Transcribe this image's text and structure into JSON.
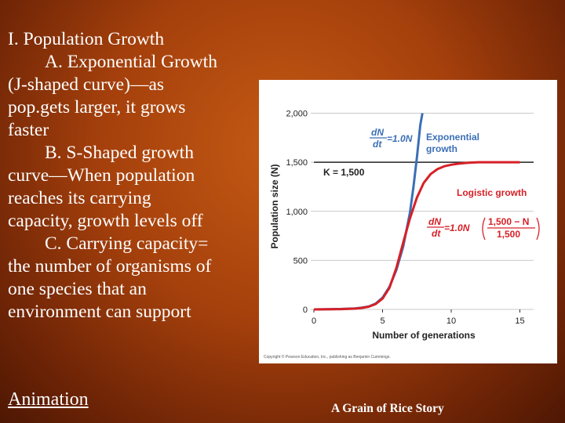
{
  "slide": {
    "lines": [
      "I. Population Growth",
      "A.  Exponential Growth",
      "(J-shaped curve)—as",
      "pop.gets larger, it grows",
      "faster",
      "B. S-Shaped growth",
      "curve—When population",
      "reaches its carrying",
      "capacity, growth levels off",
      "C.  Carrying capacity=",
      "the number of organisms of",
      "one species that an",
      "environment can support"
    ],
    "animation_link": "Animation",
    "story_link": "A Grain of Rice Story"
  },
  "chart_data": {
    "type": "line",
    "xlabel": "Number of generations",
    "ylabel": "Population size (N)",
    "xlim": [
      0,
      16
    ],
    "ylim": [
      0,
      2100
    ],
    "x_ticks": [
      0,
      5,
      10,
      15
    ],
    "y_ticks": [
      0,
      500,
      1000,
      1500,
      2000
    ],
    "y_tick_labels": [
      "0",
      "500",
      "1,000",
      "1,500",
      "2,000"
    ],
    "reference_line": {
      "label": "K = 1,500",
      "value": 1500,
      "color": "#222222"
    },
    "series": [
      {
        "name": "Exponential growth",
        "color": "#3b6fb6",
        "x": [
          0,
          1,
          2,
          3,
          3.5,
          4,
          4.5,
          5,
          5.5,
          6,
          6.5,
          7,
          7.25,
          7.5,
          7.75,
          7.9
        ],
        "y": [
          0,
          2,
          5,
          10,
          18,
          30,
          60,
          120,
          230,
          400,
          640,
          990,
          1250,
          1550,
          1880,
          2000
        ]
      },
      {
        "name": "Logistic growth",
        "color": "#d62027",
        "x": [
          0,
          2,
          3,
          3.5,
          4,
          4.5,
          5,
          5.5,
          6,
          6.5,
          7,
          7.5,
          8,
          8.5,
          9,
          9.5,
          10,
          10.5,
          11,
          11.5,
          12,
          13,
          14,
          15
        ],
        "y": [
          0,
          3,
          8,
          15,
          28,
          55,
          110,
          220,
          420,
          680,
          930,
          1140,
          1290,
          1380,
          1430,
          1460,
          1475,
          1485,
          1492,
          1497,
          1500,
          1500,
          1500,
          1500
        ]
      }
    ],
    "annotations": {
      "exp_formula_num": "dN",
      "exp_formula_den": "dt",
      "exp_formula_rhs": "=1.0N",
      "log_formula_num": "dN",
      "log_formula_den": "dt",
      "log_formula_rhs": "=1.0N",
      "log_frac_num": "1,500 − N",
      "log_frac_den": "1,500",
      "exp_label_1": "Exponential",
      "exp_label_2": "growth",
      "log_label": "Logistic growth",
      "copyright": "Copyright © Pearson Education, Inc., publishing as Benjamin Cummings."
    }
  }
}
